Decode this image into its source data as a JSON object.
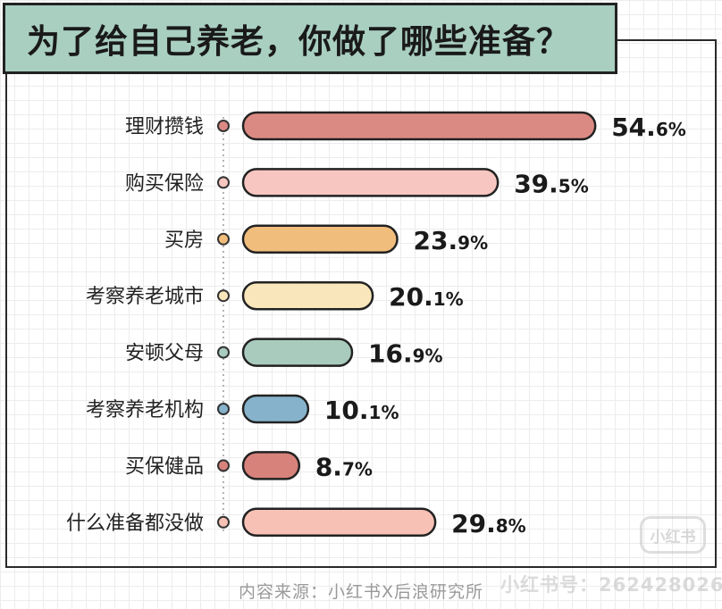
{
  "title": "为了给自己养老，你做了哪些准备？",
  "footer": "内容来源：小红书X后浪研究所",
  "watermark": {
    "text": "小红书号：262428026",
    "logo_text": "小红书"
  },
  "chart_data": {
    "type": "bar",
    "orientation": "horizontal",
    "title": "为了给自己养老，你做了哪些准备？",
    "categories": [
      "理财攒钱",
      "购买保险",
      "买房",
      "考察养老城市",
      "安顿父母",
      "考察养老机构",
      "买保健品",
      "什么准备都没做"
    ],
    "values": [
      54.6,
      39.5,
      23.9,
      20.1,
      16.9,
      10.1,
      8.7,
      29.8
    ],
    "value_labels": [
      {
        "main": "54.",
        "dec": "6%"
      },
      {
        "main": "39.",
        "dec": "5%"
      },
      {
        "main": "23.",
        "dec": "9%"
      },
      {
        "main": "20.",
        "dec": "1%"
      },
      {
        "main": "16.",
        "dec": "9%"
      },
      {
        "main": "10.",
        "dec": "1%"
      },
      {
        "main": "8.",
        "dec": "7%"
      },
      {
        "main": "29.",
        "dec": "8%"
      }
    ],
    "colors": [
      "#db8a83",
      "#f7c6c0",
      "#f1bd7c",
      "#f9e6ba",
      "#a8cbbd",
      "#86b3cb",
      "#d8827c",
      "#f7c1b5"
    ],
    "unit": "%",
    "grid": true,
    "legend": "none"
  }
}
